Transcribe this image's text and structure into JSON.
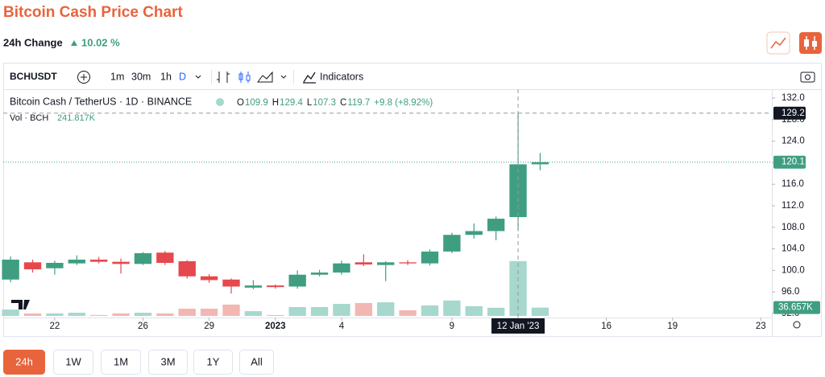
{
  "ui": {
    "title": "Bitcoin Cash Price Chart",
    "change_label": "24h Change",
    "change_value": "10.02 %",
    "symbol": "BCHUSDT",
    "intervals": [
      "1m",
      "30m",
      "1h",
      "D"
    ],
    "indicators": "Indicators",
    "ranges": [
      "24h",
      "1W",
      "1M",
      "3M",
      "1Y",
      "All"
    ]
  },
  "chart_data": {
    "type": "candlestick",
    "x": [
      "2022-12-20",
      "2022-12-21",
      "2022-12-22",
      "2022-12-23",
      "2022-12-24",
      "2022-12-25",
      "2022-12-26",
      "2022-12-27",
      "2022-12-28",
      "2022-12-29",
      "2022-12-30",
      "2022-12-31",
      "2023-01-01",
      "2023-01-02",
      "2023-01-03",
      "2023-01-04",
      "2023-01-05",
      "2023-01-06",
      "2023-01-07",
      "2023-01-08",
      "2023-01-09",
      "2023-01-10",
      "2023-01-11",
      "2023-01-12",
      "2023-01-13"
    ],
    "series": [
      {
        "name": "Bitcoin Cash / TetherUS · 1D · BINANCE",
        "open": [
          98.3,
          101.5,
          100.4,
          101.3,
          102.0,
          101.6,
          101.2,
          103.3,
          101.7,
          98.9,
          98.3,
          96.8,
          97.2,
          97.0,
          99.2,
          99.6,
          101.5,
          101.0,
          101.5,
          101.3,
          103.5,
          106.6,
          107.3,
          109.9,
          119.7
        ],
        "high": [
          102.6,
          102.0,
          101.8,
          102.8,
          102.5,
          102.2,
          103.4,
          103.6,
          101.9,
          99.3,
          98.5,
          98.2,
          97.4,
          100.0,
          100.1,
          101.8,
          103.0,
          101.7,
          101.9,
          103.9,
          107.0,
          108.7,
          110.0,
          129.4,
          121.8
        ],
        "low": [
          97.8,
          99.6,
          99.2,
          101.0,
          101.3,
          99.4,
          101.0,
          101.0,
          98.5,
          97.7,
          95.7,
          96.5,
          96.6,
          96.6,
          98.9,
          99.2,
          100.8,
          98.0,
          101.0,
          100.9,
          103.2,
          105.9,
          105.6,
          107.3,
          118.6
        ],
        "close": [
          102.0,
          100.2,
          101.4,
          102.0,
          101.6,
          101.2,
          103.2,
          101.4,
          98.9,
          98.2,
          97.0,
          97.2,
          96.9,
          99.2,
          99.6,
          101.3,
          101.1,
          101.5,
          101.3,
          103.5,
          106.6,
          107.3,
          109.6,
          119.7,
          120.1
        ]
      },
      {
        "name": "Vol · BCH",
        "axis": "y2",
        "values": [
          28,
          11,
          11,
          14,
          4,
          11,
          14,
          11,
          32,
          32,
          50,
          21,
          4,
          39,
          39,
          53,
          57,
          60,
          25,
          46,
          68,
          43,
          36,
          241.817,
          36.657
        ],
        "value_labels": [
          null,
          null,
          null,
          null,
          null,
          null,
          null,
          null,
          null,
          null,
          null,
          null,
          null,
          null,
          null,
          null,
          null,
          null,
          null,
          null,
          null,
          null,
          null,
          "241.817K",
          "36.657K"
        ]
      }
    ],
    "legend": {
      "open": "O",
      "high": "H",
      "low": "L",
      "close": "C",
      "change": "+9.8 (+8.92%)"
    },
    "up_color": "#3f9e82",
    "down_color": "#e5484d",
    "volume_up_color": "#a6d8cd",
    "volume_down_color": "#f3b7b3",
    "xlim": [
      "2022-12-19T16:00",
      "2023-01-23T12:00"
    ],
    "xticks": [
      {
        "value": "2022-12-22",
        "label": "22"
      },
      {
        "value": "2022-12-26",
        "label": "26"
      },
      {
        "value": "2022-12-29",
        "label": "29"
      },
      {
        "value": "2023-01-01",
        "label": "2023"
      },
      {
        "value": "2023-01-04",
        "label": "4"
      },
      {
        "value": "2023-01-09",
        "label": "9"
      },
      {
        "value": "2023-01-12",
        "label": "12 Jan '23"
      },
      {
        "value": "2023-01-16",
        "label": "16"
      },
      {
        "value": "2023-01-19",
        "label": "19"
      },
      {
        "value": "2023-01-23",
        "label": "23"
      }
    ],
    "ylim": [
      91.55,
      133.64
    ],
    "yticks": [
      {
        "value": 92,
        "label": "92.0"
      },
      {
        "value": 96,
        "label": "96.0"
      },
      {
        "value": 100,
        "label": "100.0"
      },
      {
        "value": 104,
        "label": "104.0"
      },
      {
        "value": 108,
        "label": "108.0"
      },
      {
        "value": 112,
        "label": "112.0"
      },
      {
        "value": 116,
        "label": "116.0"
      },
      {
        "value": 120,
        "label": "120.0"
      },
      {
        "value": 124,
        "label": "124.0"
      },
      {
        "value": 128,
        "label": "128.0"
      },
      {
        "value": 132,
        "label": "132.0"
      }
    ],
    "y2lim": [
      0,
      1000
    ],
    "grid": false,
    "crosshair": {
      "x": "2023-01-12",
      "price": 129.2
    }
  }
}
